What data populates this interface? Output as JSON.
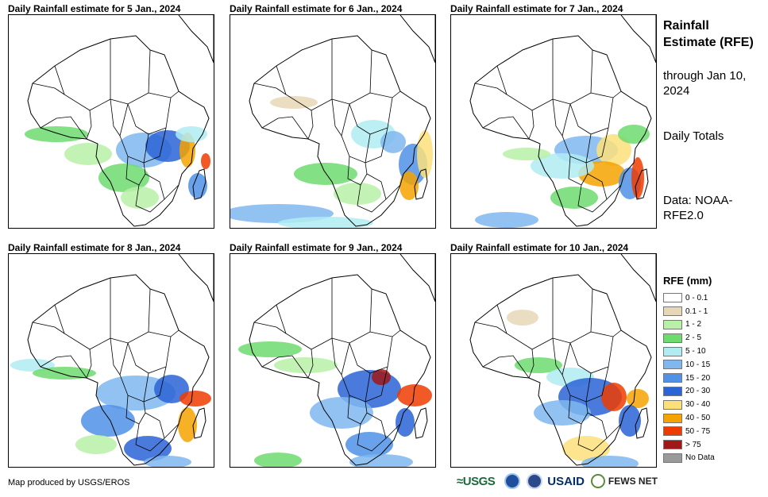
{
  "panels": [
    {
      "title": "Daily Rainfall estimate for 5 Jan., 2024"
    },
    {
      "title": "Daily Rainfall estimate for 6 Jan., 2024"
    },
    {
      "title": "Daily Rainfall estimate for 7 Jan., 2024"
    },
    {
      "title": "Daily Rainfall estimate for 8 Jan., 2024"
    },
    {
      "title": "Daily Rainfall estimate for 9 Jan., 2024"
    },
    {
      "title": "Daily Rainfall estimate for 10 Jan., 2024"
    }
  ],
  "side": {
    "title": "Rainfall Estimate (RFE)",
    "through": "through Jan 10, 2024",
    "totals": "Daily Totals",
    "data_source": "Data: NOAA-RFE2.0"
  },
  "legend": {
    "title": "RFE (mm)",
    "items": [
      {
        "label": "0 - 0.1",
        "color": "#ffffff"
      },
      {
        "label": "0.1 - 1",
        "color": "#e6d7b6"
      },
      {
        "label": "1 - 2",
        "color": "#b8f0a8"
      },
      {
        "label": "2 - 5",
        "color": "#6edb6e"
      },
      {
        "label": "5 - 10",
        "color": "#b0ecf2"
      },
      {
        "label": "10 - 15",
        "color": "#7fb7ee"
      },
      {
        "label": "15 - 20",
        "color": "#4f92e6"
      },
      {
        "label": "20 - 30",
        "color": "#2a64d6"
      },
      {
        "label": "30 - 40",
        "color": "#fbe07a"
      },
      {
        "label": "40 - 50",
        "color": "#f5a300"
      },
      {
        "label": "50 - 75",
        "color": "#ee3c00"
      },
      {
        "label": "> 75",
        "color": "#a01818"
      },
      {
        "label": "No Data",
        "color": "#9a9a9a"
      }
    ]
  },
  "footer": {
    "credit": "Map produced by USGS/EROS",
    "logos": {
      "usgs": "≈USGS",
      "usaid": "USAID",
      "fews": "FEWS NET"
    }
  }
}
